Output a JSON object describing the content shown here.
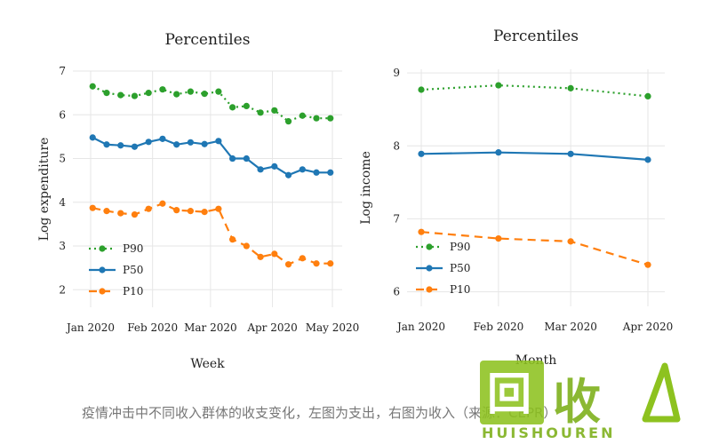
{
  "chart_data": [
    {
      "type": "line",
      "title": "Percentiles",
      "ylabel": "Log expenditure",
      "xlabel": "Week",
      "ylim": [
        1.6,
        7.0
      ],
      "y_ticks": [
        "2",
        "3",
        "4",
        "5",
        "6",
        "7"
      ],
      "x_ticks": [
        "Jan 2020",
        "Feb 2020",
        "Mar 2020",
        "Apr 2020",
        "May 2020"
      ],
      "x_tick_dates": [
        "2020-01-01",
        "2020-02-01",
        "2020-03-01",
        "2020-04-01",
        "2020-05-01"
      ],
      "x": [
        "2020-01-02",
        "2020-01-09",
        "2020-01-16",
        "2020-01-23",
        "2020-01-30",
        "2020-02-06",
        "2020-02-13",
        "2020-02-20",
        "2020-02-27",
        "2020-03-05",
        "2020-03-12",
        "2020-03-19",
        "2020-03-26",
        "2020-04-02",
        "2020-04-09",
        "2020-04-16",
        "2020-04-23",
        "2020-04-30"
      ],
      "legend": "bottom-left",
      "series": [
        {
          "name": "P90",
          "color": "#2ca02c",
          "dash": "dotted",
          "values": [
            6.65,
            6.5,
            6.45,
            6.43,
            6.5,
            6.58,
            6.47,
            6.53,
            6.48,
            6.53,
            6.17,
            6.2,
            6.05,
            6.1,
            5.85,
            5.98,
            5.92,
            5.92
          ]
        },
        {
          "name": "P50",
          "color": "#1f77b4",
          "dash": "solid",
          "values": [
            5.48,
            5.32,
            5.3,
            5.27,
            5.38,
            5.45,
            5.32,
            5.37,
            5.33,
            5.4,
            5.0,
            5.0,
            4.75,
            4.82,
            4.62,
            4.75,
            4.68,
            4.68
          ]
        },
        {
          "name": "P10",
          "color": "#ff7f0e",
          "dash": "dashed",
          "values": [
            3.87,
            3.8,
            3.75,
            3.72,
            3.85,
            3.97,
            3.82,
            3.8,
            3.78,
            3.85,
            3.15,
            3.0,
            2.75,
            2.82,
            2.58,
            2.72,
            2.6,
            2.6
          ]
        }
      ]
    },
    {
      "type": "line",
      "title": "Percentiles",
      "ylabel": "Log income",
      "xlabel": "Month",
      "ylim": [
        5.8,
        9.05
      ],
      "y_ticks": [
        "6",
        "7",
        "8",
        "9"
      ],
      "x_ticks": [
        "Jan 2020",
        "Feb 2020",
        "Mar 2020",
        "Apr 2020"
      ],
      "x_tick_dates": [
        "2020-01-01",
        "2020-02-01",
        "2020-03-01",
        "2020-04-01"
      ],
      "x": [
        "2020-01-01",
        "2020-02-01",
        "2020-03-01",
        "2020-04-01"
      ],
      "legend": "bottom-left",
      "series": [
        {
          "name": "P90",
          "color": "#2ca02c",
          "dash": "dotted",
          "values": [
            8.77,
            8.83,
            8.79,
            8.68
          ]
        },
        {
          "name": "P50",
          "color": "#1f77b4",
          "dash": "solid",
          "values": [
            7.89,
            7.91,
            7.89,
            7.81
          ]
        },
        {
          "name": "P10",
          "color": "#ff7f0e",
          "dash": "dashed",
          "values": [
            6.82,
            6.73,
            6.69,
            6.37
          ]
        }
      ]
    }
  ],
  "caption": "疫情冲击中不同收入群体的收支变化，左图为支出，右图为收入（来源：CEPR）",
  "watermark": {
    "glyph": "回",
    "text": "收",
    "sub": "HUISHOUREN"
  }
}
